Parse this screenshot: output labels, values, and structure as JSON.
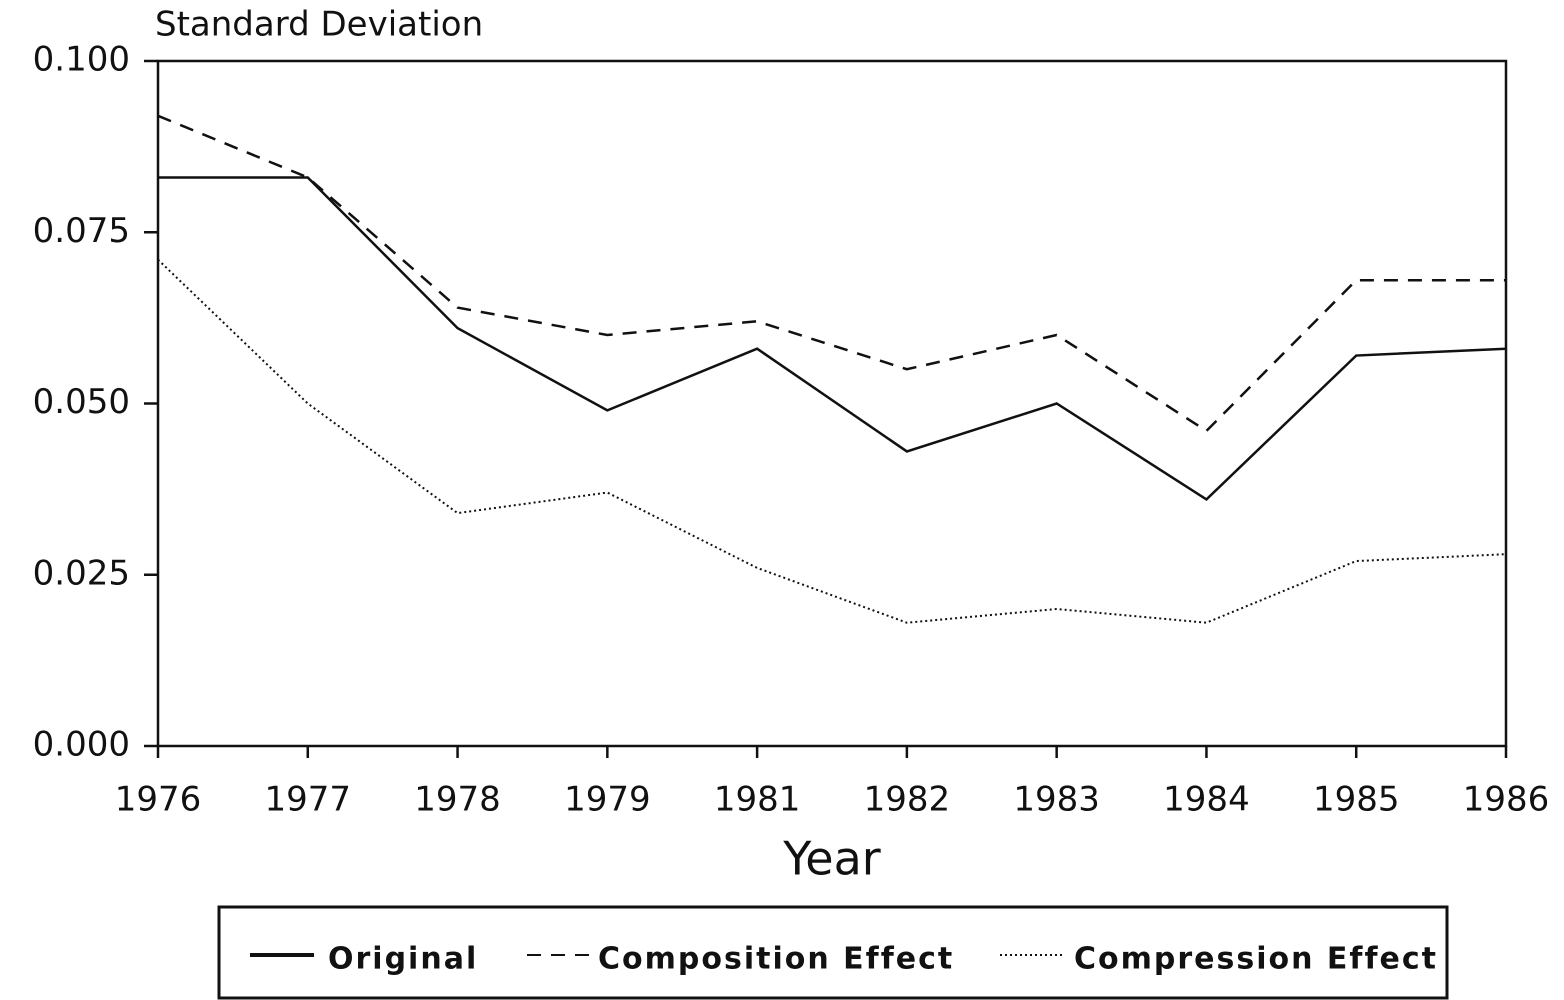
{
  "chart_data": {
    "type": "line",
    "y_label": "Standard Deviation",
    "x_label": "Year",
    "categories": [
      "1976",
      "1977",
      "1978",
      "1979",
      "1981",
      "1982",
      "1983",
      "1984",
      "1985",
      "1986"
    ],
    "series": [
      {
        "name": "Original",
        "color": "#111111",
        "style": "solid",
        "values": [
          0.083,
          0.083,
          0.061,
          0.049,
          0.058,
          0.043,
          0.05,
          0.036,
          0.057,
          0.058
        ]
      },
      {
        "name": "Composition Effect",
        "color": "#111111",
        "style": "dashed",
        "values": [
          0.092,
          0.083,
          0.064,
          0.06,
          0.062,
          0.055,
          0.06,
          0.046,
          0.068,
          0.068
        ]
      },
      {
        "name": "Compression Effect",
        "color": "#111111",
        "style": "dotted",
        "values": [
          0.071,
          0.05,
          0.034,
          0.037,
          0.026,
          0.018,
          0.02,
          0.018,
          0.027,
          0.028
        ]
      }
    ],
    "ylim": [
      0,
      0.1
    ],
    "yticks": [
      {
        "value": 0,
        "label": "0.000"
      },
      0.025,
      {
        "value": 0.05,
        "label": "0.050"
      },
      0.075,
      {
        "value": 0.1,
        "label": "0.100"
      }
    ],
    "legend": "bottom"
  }
}
